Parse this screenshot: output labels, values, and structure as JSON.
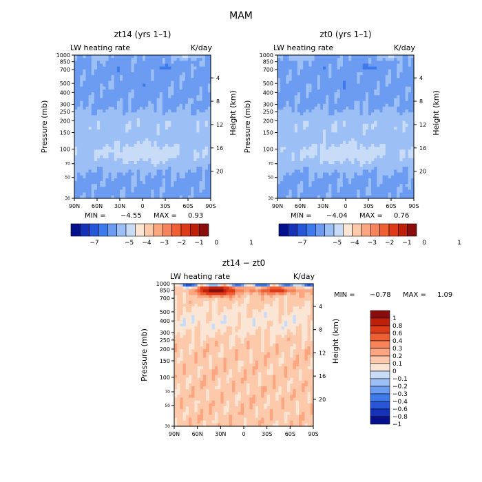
{
  "title": "MAM",
  "chart_data": [
    {
      "type": "heatmap",
      "title": "zt14 (yrs 1–1)",
      "field_label": "LW heating rate",
      "units": "K/day",
      "xlabel": "",
      "ylabel": "Pressure (mb)",
      "y2label": "Height (km)",
      "x_ticks": [
        "90N",
        "60N",
        "30N",
        "0",
        "30S",
        "60S",
        "90S"
      ],
      "y_ticks": [
        30,
        50,
        70,
        100,
        150,
        200,
        250,
        300,
        400,
        500,
        700,
        850,
        1000
      ],
      "y_tick_labels": [
        "30",
        "50",
        "70",
        "100",
        "150",
        "200",
        "250",
        "300",
        "400",
        "500",
        "700",
        "850",
        "1000"
      ],
      "y2_ticks": [
        20,
        16,
        12,
        8,
        4
      ],
      "y2_tick_labels": [
        "20",
        "16",
        "12",
        "8",
        "4"
      ],
      "ylim": [
        1000,
        30
      ],
      "min_label": "MIN =",
      "min_value": "−4.55",
      "max_label": "MAX =",
      "max_value": "0.93",
      "colorbar": {
        "orientation": "horizontal",
        "labels": [
          "−7",
          "−5",
          "−4",
          "−3",
          "−2",
          "−1",
          "0",
          "1"
        ],
        "levels": [
          -7,
          -5,
          -4,
          -3,
          -2,
          -1,
          0,
          1
        ],
        "colors": [
          "#05108c",
          "#1632b8",
          "#2856d8",
          "#3f7aed",
          "#6c9cf2",
          "#9cbff5",
          "#c8dcf7",
          "#fbe6d6",
          "#fdc9ab",
          "#fca681",
          "#f7835a",
          "#ef5f34",
          "#dd3a1a",
          "#be200a",
          "#8a0d0d"
        ]
      },
      "field_id": "zt14"
    },
    {
      "type": "heatmap",
      "title": "zt0 (yrs 1–1)",
      "field_label": "LW heating rate",
      "units": "K/day",
      "xlabel": "",
      "ylabel": "Pressure (mb)",
      "y2label": "Height (km)",
      "x_ticks": [
        "90N",
        "60N",
        "30N",
        "0",
        "30S",
        "60S",
        "90S"
      ],
      "y_ticks": [
        30,
        50,
        70,
        100,
        150,
        200,
        250,
        300,
        400,
        500,
        700,
        850,
        1000
      ],
      "y_tick_labels": [
        "30",
        "50",
        "70",
        "100",
        "150",
        "200",
        "250",
        "300",
        "400",
        "500",
        "700",
        "850",
        "1000"
      ],
      "y2_ticks": [
        20,
        16,
        12,
        8,
        4
      ],
      "y2_tick_labels": [
        "20",
        "16",
        "12",
        "8",
        "4"
      ],
      "ylim": [
        1000,
        30
      ],
      "min_label": "MIN =",
      "min_value": "−4.04",
      "max_label": "MAX =",
      "max_value": "0.76",
      "colorbar": {
        "orientation": "horizontal",
        "labels": [
          "−7",
          "−5",
          "−4",
          "−3",
          "−2",
          "−1",
          "0",
          "1"
        ],
        "levels": [
          -7,
          -5,
          -4,
          -3,
          -2,
          -1,
          0,
          1
        ],
        "colors": [
          "#05108c",
          "#1632b8",
          "#2856d8",
          "#3f7aed",
          "#6c9cf2",
          "#9cbff5",
          "#c8dcf7",
          "#fbe6d6",
          "#fdc9ab",
          "#fca681",
          "#f7835a",
          "#ef5f34",
          "#dd3a1a",
          "#be200a",
          "#8a0d0d"
        ]
      },
      "field_id": "zt0"
    },
    {
      "type": "heatmap",
      "title": "zt14 − zt0",
      "field_label": "LW heating rate",
      "units": "K/day",
      "xlabel": "",
      "ylabel": "Pressure (mb)",
      "y2label": "Height (km)",
      "x_ticks": [
        "90N",
        "60N",
        "30N",
        "0",
        "30S",
        "60S",
        "90S"
      ],
      "y_ticks": [
        30,
        50,
        70,
        100,
        150,
        200,
        250,
        300,
        400,
        500,
        700,
        850,
        1000
      ],
      "y_tick_labels": [
        "30",
        "50",
        "70",
        "100",
        "150",
        "200",
        "250",
        "300",
        "400",
        "500",
        "700",
        "850",
        "1000"
      ],
      "y2_ticks": [
        20,
        16,
        12,
        8,
        4
      ],
      "y2_tick_labels": [
        "20",
        "16",
        "12",
        "8",
        "4"
      ],
      "ylim": [
        1000,
        30
      ],
      "min_label": "MIN =",
      "min_value": "−0.78",
      "max_label": "MAX =",
      "max_value": "1.09",
      "colorbar": {
        "orientation": "vertical",
        "labels": [
          "1",
          "0.8",
          "0.6",
          "0.4",
          "0.3",
          "0.2",
          "0.1",
          "0",
          "−0.1",
          "−0.2",
          "−0.3",
          "−0.4",
          "−0.6",
          "−0.8",
          "−1"
        ],
        "levels": [
          1,
          0.8,
          0.6,
          0.4,
          0.3,
          0.2,
          0.1,
          0,
          -0.1,
          -0.2,
          -0.3,
          -0.4,
          -0.6,
          -0.8,
          -1
        ],
        "colors": [
          "#8a0d0d",
          "#be200a",
          "#dd3a1a",
          "#ef5f34",
          "#f7835a",
          "#fca681",
          "#fdc9ab",
          "#fbe6d6",
          "#c8dcf7",
          "#9cbff5",
          "#6c9cf2",
          "#3f7aed",
          "#2856d8",
          "#1632b8",
          "#05108c"
        ]
      },
      "field_id": "diff"
    }
  ]
}
